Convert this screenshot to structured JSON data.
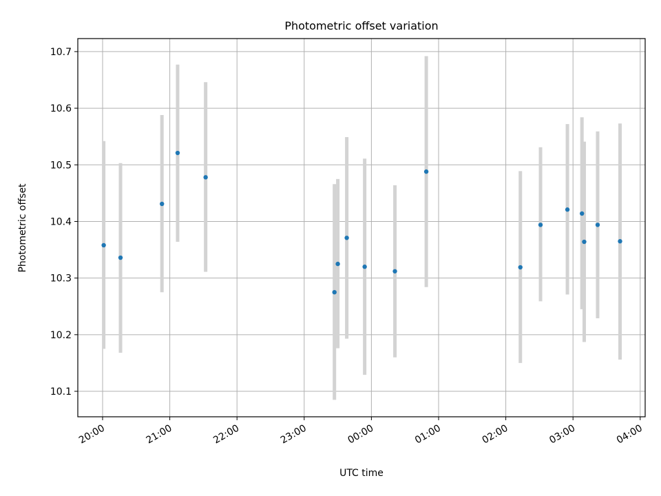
{
  "chart_data": {
    "type": "scatter",
    "title": "Photometric offset variation",
    "xlabel": "UTC time",
    "ylabel": "Photometric offset",
    "x_unit": "UTC hour (clock time, 24h)",
    "x_ticks": [
      "20:00",
      "21:00",
      "22:00",
      "23:00",
      "00:00",
      "01:00",
      "02:00",
      "03:00",
      "04:00"
    ],
    "y_ticks": [
      "10.1",
      "10.2",
      "10.3",
      "10.4",
      "10.5",
      "10.6",
      "10.7"
    ],
    "y_tick_values": [
      10.1,
      10.2,
      10.3,
      10.4,
      10.5,
      10.6,
      10.7
    ],
    "ylim": [
      10.055,
      10.723
    ],
    "grid": true,
    "colors": {
      "point": "#1f77b4",
      "errorbar": "#d3d3d3",
      "grid": "#b0b0b0"
    },
    "points": [
      {
        "time": "20:01",
        "y": 10.358,
        "lo": 10.175,
        "hi": 10.542
      },
      {
        "time": "20:16",
        "y": 10.336,
        "lo": 10.168,
        "hi": 10.503
      },
      {
        "time": "20:53",
        "y": 10.431,
        "lo": 10.275,
        "hi": 10.588
      },
      {
        "time": "21:07",
        "y": 10.521,
        "lo": 10.364,
        "hi": 10.677
      },
      {
        "time": "21:32",
        "y": 10.478,
        "lo": 10.311,
        "hi": 10.646
      },
      {
        "time": "23:27",
        "y": 10.275,
        "lo": 10.085,
        "hi": 10.466
      },
      {
        "time": "23:30",
        "y": 10.325,
        "lo": 10.176,
        "hi": 10.475
      },
      {
        "time": "23:38",
        "y": 10.371,
        "lo": 10.193,
        "hi": 10.549
      },
      {
        "time": "23:54",
        "y": 10.32,
        "lo": 10.129,
        "hi": 10.511
      },
      {
        "time": "00:21",
        "y": 10.312,
        "lo": 10.16,
        "hi": 10.464
      },
      {
        "time": "00:49",
        "y": 10.488,
        "lo": 10.284,
        "hi": 10.692
      },
      {
        "time": "02:13",
        "y": 10.319,
        "lo": 10.15,
        "hi": 10.489
      },
      {
        "time": "02:31",
        "y": 10.394,
        "lo": 10.259,
        "hi": 10.531
      },
      {
        "time": "02:55",
        "y": 10.421,
        "lo": 10.271,
        "hi": 10.572
      },
      {
        "time": "03:08",
        "y": 10.414,
        "lo": 10.245,
        "hi": 10.584
      },
      {
        "time": "03:10",
        "y": 10.364,
        "lo": 10.187,
        "hi": 10.541
      },
      {
        "time": "03:22",
        "y": 10.394,
        "lo": 10.229,
        "hi": 10.559
      },
      {
        "time": "03:42",
        "y": 10.365,
        "lo": 10.156,
        "hi": 10.573
      }
    ]
  }
}
